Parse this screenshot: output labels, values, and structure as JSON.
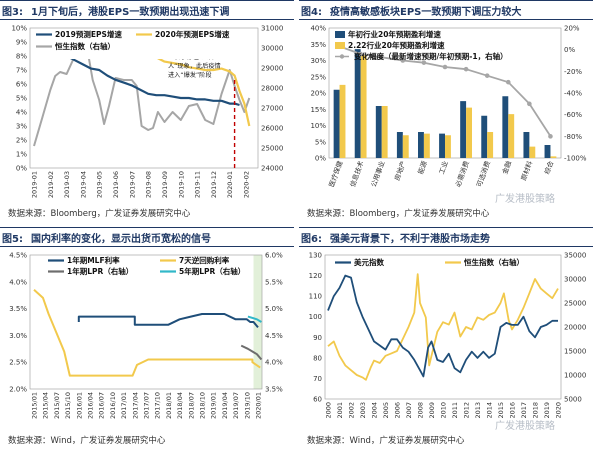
{
  "panels": {
    "p3": {
      "num": "图3:",
      "title": "1月下旬后，港股EPS一致预期出现迅速下调",
      "source": "数据来源：Bloomberg，广发证券发展研究中心",
      "annotation": [
        "1月20日，钟南山院",
        "士表示存在“人传",
        "人”现象，此后疫情",
        "进入“爆发”阶段"
      ]
    },
    "p4": {
      "num": "图4:",
      "title": "疫情高敏感板块EPS一致预期下调压力较大",
      "source": "数据来源：Bloomberg，广发证券发展研究中心"
    },
    "p5": {
      "num": "图5:",
      "title": "国内利率的变化，显示出货币宽松的信号",
      "source": "数据来源：Wind，广发证券发展研究中心"
    },
    "p6": {
      "num": "图6:",
      "title": "强美元背景下，不利于港股市场走势",
      "source": "数据来源：Wind，广发证券发展研究中心"
    }
  },
  "watermark": "广发港股策略",
  "colors": {
    "navy": "#1f4e79",
    "gold": "#f2c94c",
    "gray": "#a6a6a6",
    "teal": "#31b8c9",
    "red": "#c00000"
  },
  "chart_data": [
    {
      "id": "fig3",
      "type": "line",
      "legend": [
        "2019预测EPS增速",
        "2020年预测EPS增速",
        "恒生指数（右轴）"
      ],
      "x_ticks": [
        "2019-01",
        "2019-02",
        "2019-03",
        "2019-04",
        "2019-05",
        "2019-06",
        "2019-07",
        "2019-08",
        "2019-09",
        "2019-10",
        "2019-11",
        "2019-12",
        "2020-01",
        "2020-02"
      ],
      "y_left_ticks": [
        "0%",
        "1%",
        "2%",
        "3%",
        "4%",
        "5%",
        "6%",
        "7%",
        "8%",
        "9%",
        "10%"
      ],
      "y_right_ticks": [
        "24000",
        "25000",
        "26000",
        "27000",
        "28000",
        "29000",
        "30000",
        "31000"
      ],
      "ylim_left": [
        0,
        10
      ],
      "ylim_right": [
        24000,
        31000
      ],
      "series": [
        {
          "name": "2019预测EPS增速",
          "axis": "left",
          "x": [
            0,
            0.5,
            1,
            1.5,
            2,
            2.5,
            3,
            3.5,
            4,
            4.5,
            5,
            5.5,
            6,
            6.5,
            7,
            7.5,
            8,
            8.5,
            9,
            9.5,
            10,
            10.5,
            11,
            11.5,
            12,
            12.3,
            12.6
          ],
          "y": [
            9.0,
            8.7,
            8.6,
            8.4,
            8.0,
            7.7,
            7.4,
            7.1,
            7.0,
            6.6,
            6.3,
            6.1,
            5.9,
            5.6,
            5.3,
            5.2,
            5.2,
            5.1,
            5.0,
            5.0,
            4.9,
            4.9,
            4.8,
            4.8,
            4.6,
            4.6,
            4.5
          ]
        },
        {
          "name": "2020年预测EPS增速",
          "axis": "left",
          "x": [
            0,
            0.5,
            1,
            1.5,
            2,
            2.5,
            3,
            3.5,
            4,
            4.5,
            5,
            5.5,
            6,
            6.5,
            7,
            7.5,
            8,
            8.5,
            9,
            9.5,
            10,
            10.5,
            11,
            11.5,
            12,
            12.3,
            12.6,
            12.9,
            13.2
          ],
          "y": [
            9.6,
            9.4,
            9.4,
            9.3,
            9.2,
            9.1,
            9.1,
            9.0,
            9.0,
            8.9,
            8.9,
            8.8,
            8.6,
            8.5,
            8.2,
            7.9,
            7.6,
            7.5,
            7.4,
            7.2,
            7.1,
            7.0,
            7.0,
            7.1,
            6.9,
            6.6,
            5.5,
            4.6,
            3.0
          ]
        },
        {
          "name": "恒生指数（右轴）",
          "axis": "right",
          "x": [
            0,
            0.5,
            1,
            1.3,
            1.6,
            2,
            2.5,
            3,
            3.3,
            3.6,
            4,
            4.3,
            4.6,
            5,
            5.5,
            6,
            6.3,
            6.6,
            7,
            7.3,
            7.6,
            8,
            8.5,
            9,
            9.5,
            10,
            10.5,
            11,
            11.5,
            12,
            12.3,
            12.6,
            12.9,
            13.2
          ],
          "y": [
            25100,
            26500,
            27900,
            28600,
            28800,
            28700,
            29600,
            29900,
            29800,
            28400,
            27400,
            26200,
            27100,
            28500,
            28400,
            28400,
            28100,
            26100,
            25900,
            26000,
            26800,
            26300,
            26800,
            26400,
            27100,
            27200,
            26400,
            26200,
            27700,
            28900,
            28100,
            27400,
            26800,
            27500
          ]
        }
      ],
      "event_marker_x": "2020-01"
    },
    {
      "id": "fig4",
      "type": "bar",
      "legend": [
        "年初行业20年预期盈利增速",
        "2.22行业20年预期盈利增速",
        "变化幅度（最新增速预期/年初预期-1，右轴）"
      ],
      "categories": [
        "医疗保健",
        "信息技术",
        "公用事业",
        "房地产",
        "能源",
        "工业",
        "必需消费",
        "可选消费",
        "金融",
        "原材料",
        "综合"
      ],
      "ylim_left": [
        0,
        40
      ],
      "ylim_right": [
        -100,
        20
      ],
      "y_left_ticks": [
        "0%",
        "5%",
        "10%",
        "15%",
        "20%",
        "25%",
        "30%",
        "35%",
        "40%"
      ],
      "y_right_ticks": [
        "-100%",
        "-80%",
        "-60%",
        "-40%",
        "-20%",
        "0%",
        "20%"
      ],
      "series": [
        {
          "name": "年初行业20年预期盈利增速",
          "values": [
            21,
            33.5,
            16,
            8,
            8,
            7.5,
            17.5,
            13,
            19,
            8,
            4
          ]
        },
        {
          "name": "2.22行业20年预期盈利增速",
          "values": [
            22.5,
            32,
            16,
            7,
            7.5,
            7,
            15.5,
            8,
            13.5,
            3.5,
            0.5
          ]
        },
        {
          "name": "变化幅度（最新增速预期/年初预期-1，右轴）",
          "axis": "right",
          "values": [
            3,
            -4,
            -7,
            -10,
            -12,
            -16,
            -18,
            -24,
            -30,
            -50,
            -80
          ]
        }
      ]
    },
    {
      "id": "fig5",
      "type": "line",
      "legend": [
        "1年期MLF利率",
        "7天逆回购利率",
        "1年期LPR（右轴）",
        "5年期LPR（右轴）"
      ],
      "x_ticks": [
        "2015/01",
        "2015/04",
        "2015/07",
        "2015/10",
        "2016/01",
        "2016/04",
        "2016/07",
        "2016/10",
        "2017/01",
        "2017/04",
        "2017/07",
        "2017/10",
        "2018/01",
        "2018/04",
        "2018/07",
        "2018/10",
        "2019/01",
        "2019/04",
        "2019/07",
        "2019/10",
        "2020/01"
      ],
      "ylim_left": [
        2.0,
        4.5
      ],
      "ylim_right": [
        3.5,
        6.0
      ],
      "y_left_ticks": [
        "2.0%",
        "2.5%",
        "3.0%",
        "3.5%",
        "4.0%",
        "4.5%"
      ],
      "y_right_ticks": [
        "3.5%",
        "4.0%",
        "4.5%",
        "5.0%",
        "5.5%",
        "6.0%"
      ],
      "series": [
        {
          "name": "1年期MLF利率",
          "axis": "left",
          "x": [
            4.0,
            4.0,
            8.0,
            9.0,
            9.0,
            12.0,
            13.0,
            14.0,
            15.0,
            16.0,
            17.0,
            18.0,
            19.0,
            19.3,
            19.6,
            20.0
          ],
          "y": [
            3.25,
            3.35,
            3.35,
            3.35,
            3.2,
            3.2,
            3.3,
            3.35,
            3.4,
            3.4,
            3.4,
            3.3,
            3.3,
            3.25,
            3.25,
            3.15
          ]
        },
        {
          "name": "7天逆回购利率",
          "axis": "left",
          "x": [
            0,
            0.8,
            1.3,
            2.1,
            2.7,
            3.2,
            8.8,
            9.0,
            9.2,
            10.2,
            10.4,
            19.5,
            19.5,
            20.2
          ],
          "y": [
            3.85,
            3.7,
            3.4,
            3.0,
            2.7,
            2.25,
            2.25,
            2.35,
            2.45,
            2.55,
            2.55,
            2.55,
            2.5,
            2.4
          ]
        },
        {
          "name": "1年期LPR（右轴）",
          "axis": "right",
          "x": [
            18.5,
            19.1,
            19.5,
            19.9,
            20.3
          ],
          "y": [
            4.31,
            4.25,
            4.2,
            4.15,
            4.05
          ]
        },
        {
          "name": "5年期LPR（右轴）",
          "axis": "right",
          "x": [
            19.1,
            19.9,
            20.3
          ],
          "y": [
            4.85,
            4.8,
            4.75
          ]
        }
      ]
    },
    {
      "id": "fig6",
      "type": "line",
      "legend": [
        "美元指数",
        "恒生指数（右轴）"
      ],
      "x_ticks": [
        "2000",
        "2001",
        "2002",
        "2003",
        "2004",
        "2005",
        "2006",
        "2007",
        "2008",
        "2009",
        "2010",
        "2011",
        "2012",
        "2013",
        "2014",
        "2015",
        "2016",
        "2017",
        "2018",
        "2019",
        "2020"
      ],
      "ylim_left": [
        60,
        130
      ],
      "ylim_right": [
        5000,
        35000
      ],
      "y_left_ticks": [
        "60",
        "70",
        "80",
        "90",
        "100",
        "110",
        "120",
        "130"
      ],
      "y_right_ticks": [
        "5000",
        "10000",
        "15000",
        "20000",
        "25000",
        "30000",
        "35000"
      ],
      "series": [
        {
          "name": "美元指数",
          "axis": "left",
          "x": [
            2000,
            2000.5,
            2001,
            2001.5,
            2002,
            2002.5,
            2003,
            2003.5,
            2004,
            2004.5,
            2005,
            2005.5,
            2006,
            2006.5,
            2007,
            2007.5,
            2008,
            2008.3,
            2008.7,
            2009,
            2009.5,
            2010,
            2010.5,
            2011,
            2011.5,
            2012,
            2012.5,
            2013,
            2013.5,
            2014,
            2014.5,
            2015,
            2015.5,
            2016,
            2016.5,
            2017,
            2017.5,
            2018,
            2018.5,
            2019,
            2019.5,
            2020
          ],
          "y": [
            103,
            110,
            114,
            120,
            119,
            107,
            100,
            94,
            88,
            86,
            84,
            89,
            89,
            85,
            83,
            79,
            74,
            71,
            85,
            88,
            79,
            78,
            82,
            75,
            73,
            79,
            83,
            80,
            83,
            80,
            82,
            95,
            97,
            96,
            96,
            100,
            93,
            90,
            95,
            96,
            98,
            98
          ]
        },
        {
          "name": "恒生指数（右轴）",
          "axis": "right",
          "x": [
            2000,
            2000.5,
            2001,
            2001.5,
            2002,
            2002.5,
            2003,
            2003.3,
            2003.7,
            2004,
            2004.5,
            2005,
            2005.5,
            2006,
            2006.5,
            2007,
            2007.5,
            2007.8,
            2008,
            2008.5,
            2008.8,
            2009,
            2009.5,
            2010,
            2010.5,
            2011,
            2011.5,
            2012,
            2012.5,
            2013,
            2013.5,
            2014,
            2014.5,
            2015,
            2015.3,
            2015.7,
            2016,
            2016.5,
            2017,
            2017.5,
            2018,
            2018.5,
            2019,
            2019.5,
            2020
          ],
          "y": [
            16000,
            17000,
            14000,
            12000,
            11000,
            10000,
            9500,
            9000,
            11500,
            13000,
            12500,
            14000,
            14500,
            15000,
            17500,
            20000,
            23000,
            31000,
            25000,
            22000,
            12000,
            14000,
            19000,
            21000,
            20500,
            23000,
            18000,
            20000,
            19500,
            22000,
            21500,
            22500,
            23000,
            25000,
            27000,
            21500,
            19500,
            21500,
            24000,
            27000,
            30000,
            28000,
            27000,
            26000,
            28000
          ]
        }
      ]
    }
  ]
}
